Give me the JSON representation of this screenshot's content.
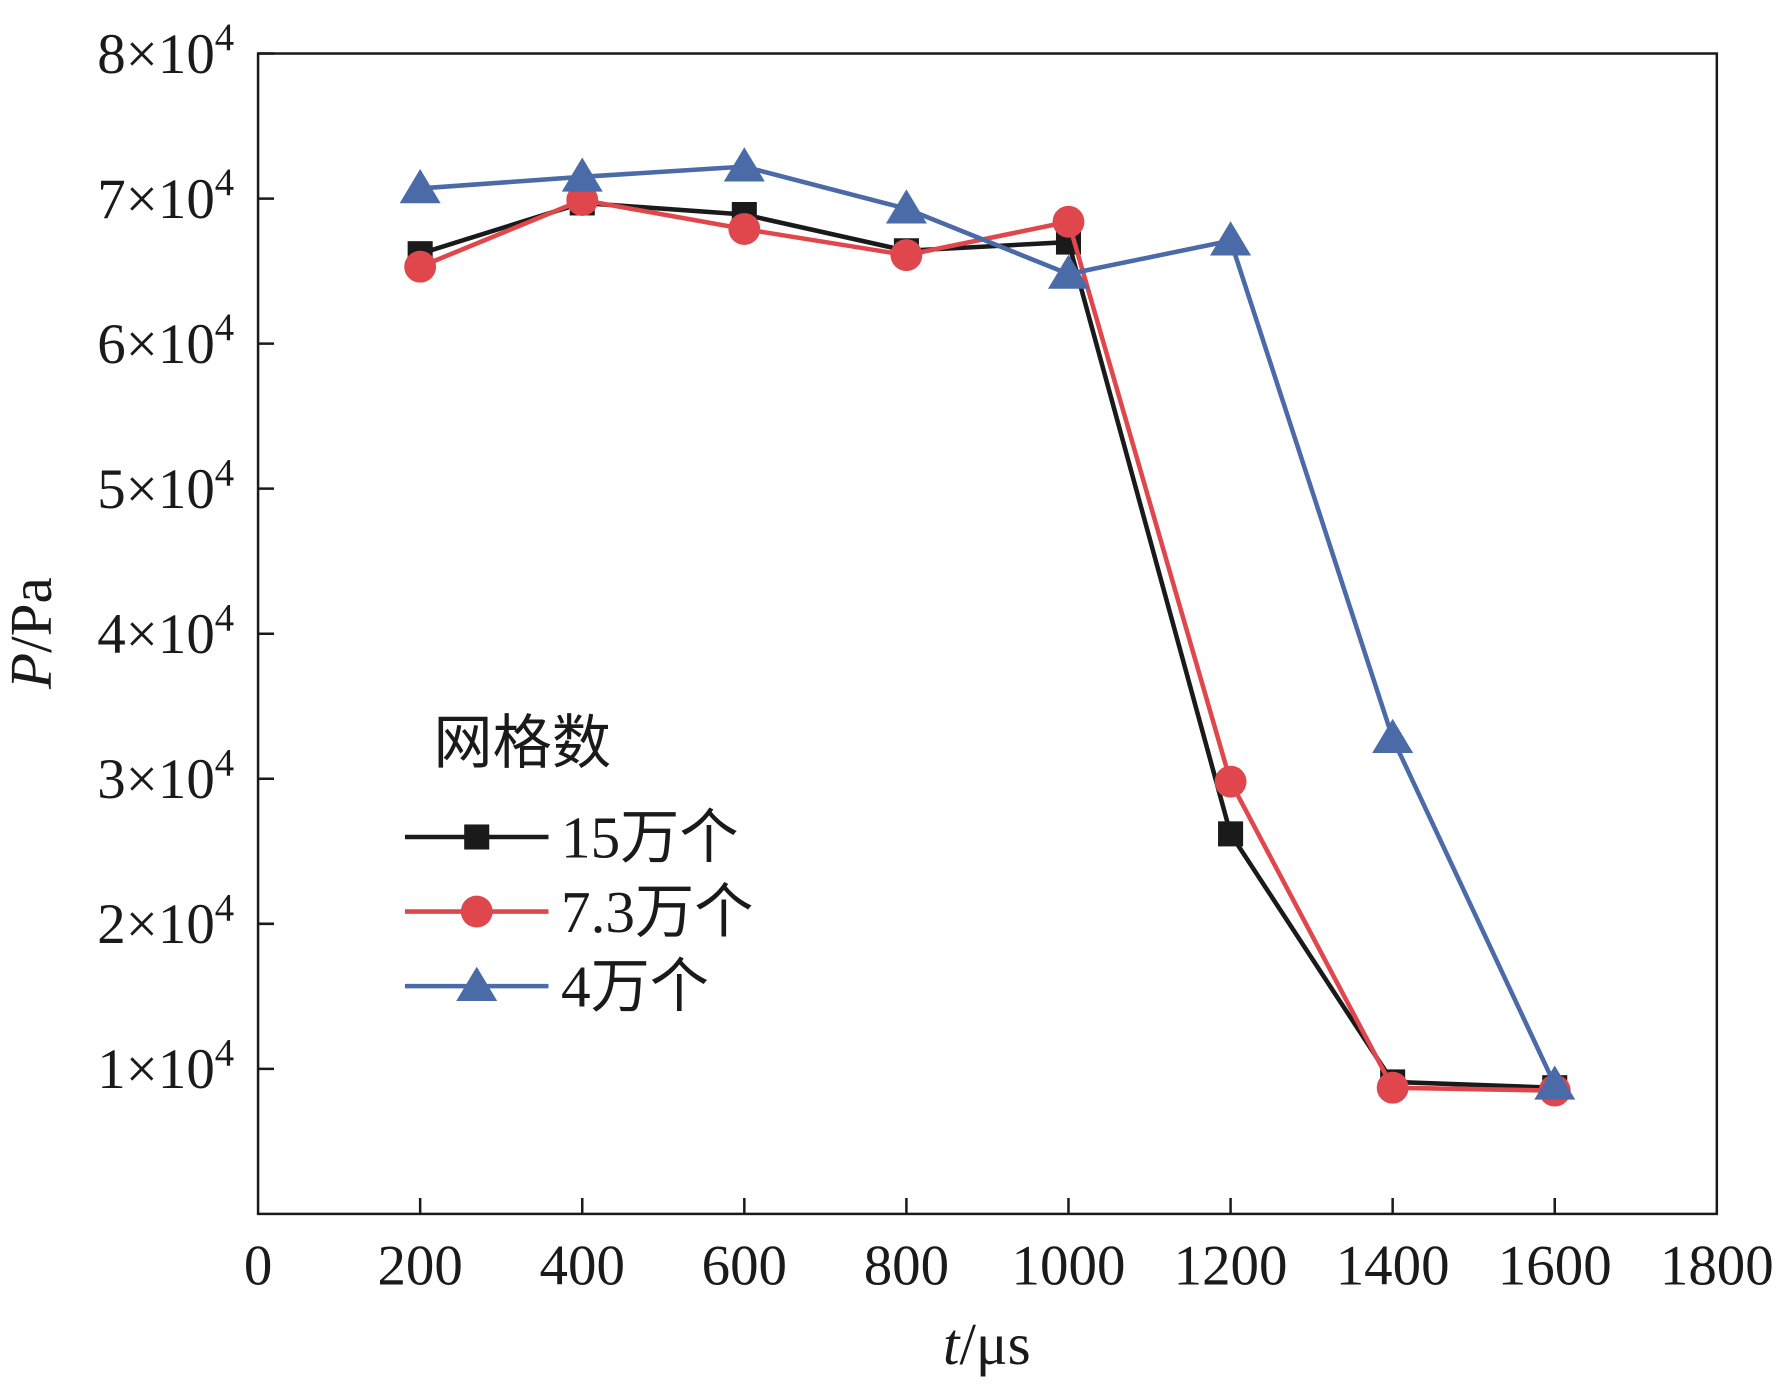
{
  "chart_data": {
    "type": "line",
    "xlabel": "t/μs",
    "ylabel": "P/Pa",
    "xlim": [
      0,
      1800
    ],
    "ylim": [
      0,
      80000
    ],
    "xticks": [
      0,
      200,
      400,
      600,
      800,
      1000,
      1200,
      1400,
      1600,
      1800
    ],
    "yticks": [
      10000,
      20000,
      30000,
      40000,
      50000,
      60000,
      70000,
      80000
    ],
    "ytick_labels": [
      "1×10⁴",
      "2×10⁴",
      "3×10⁴",
      "4×10⁴",
      "5×10⁴",
      "6×10⁴",
      "7×10⁴",
      "8×10⁴"
    ],
    "grid": false,
    "legend_title": "网格数",
    "legend_position": "lower-left",
    "x": [
      200,
      400,
      600,
      800,
      1000,
      1200,
      1400,
      1600
    ],
    "series": [
      {
        "name": "15万个",
        "color": "#1a1a1a",
        "marker": "square",
        "values": [
          66200,
          69700,
          68900,
          66400,
          67000,
          26200,
          9100,
          8700
        ]
      },
      {
        "name": "7.3万个",
        "color": "#e0474c",
        "marker": "circle",
        "values": [
          65300,
          69900,
          67900,
          66100,
          68400,
          29800,
          8700,
          8500
        ]
      },
      {
        "name": "4万个",
        "color": "#4a6aa8",
        "marker": "triangle",
        "values": [
          70700,
          71500,
          72200,
          69300,
          64800,
          67100,
          32800,
          8900
        ]
      }
    ]
  }
}
